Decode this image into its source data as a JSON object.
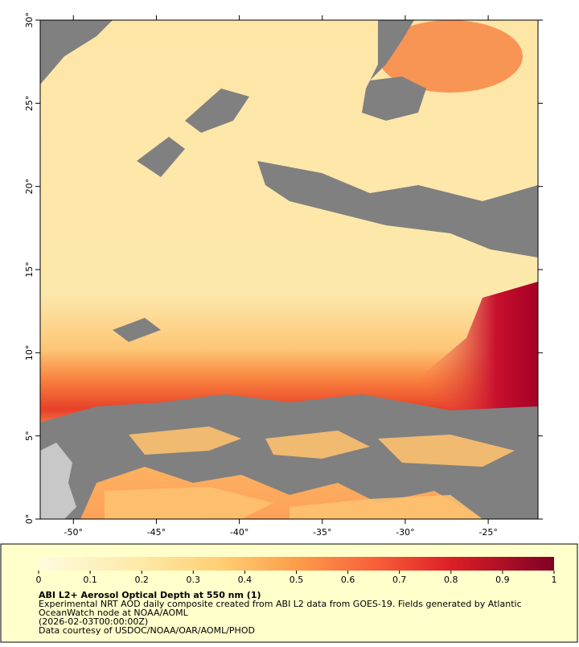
{
  "map": {
    "lonlim": [
      -52,
      -22
    ],
    "latlim": [
      0,
      30
    ],
    "lon_ticks": [
      {
        "value": -50,
        "label": "-50°"
      },
      {
        "value": -45,
        "label": "-45°"
      },
      {
        "value": -40,
        "label": "-40°"
      },
      {
        "value": -35,
        "label": "-35°"
      },
      {
        "value": -30,
        "label": "-30°"
      },
      {
        "value": -25,
        "label": "-25°"
      }
    ],
    "lat_ticks": [
      {
        "value": 0,
        "label": "0°"
      },
      {
        "value": 5,
        "label": "5°"
      },
      {
        "value": 10,
        "label": "10°"
      },
      {
        "value": 15,
        "label": "15°"
      },
      {
        "value": 20,
        "label": "20°"
      },
      {
        "value": 25,
        "label": "25°"
      },
      {
        "value": 30,
        "label": "30°"
      }
    ]
  },
  "colorbar": {
    "lim": [
      0,
      1
    ],
    "ticks": [
      0,
      0.1,
      0.2,
      0.3,
      0.4,
      0.5,
      0.6,
      0.7,
      0.8,
      0.9,
      1
    ]
  },
  "caption": {
    "title": "ABI L2+ Aerosol Optical Depth at 550 nm (1)",
    "lines": [
      "Experimental NRT AOD daily composite created from ABI L2 data from GOES-19. Fields generated by Atlantic",
      "OceanWatch node at NOAA/AOML",
      "(2026-02-03T00:00:00Z)",
      "Data courtesy of USDOC/NOAA/OAR/AOML/PHOD"
    ]
  }
}
